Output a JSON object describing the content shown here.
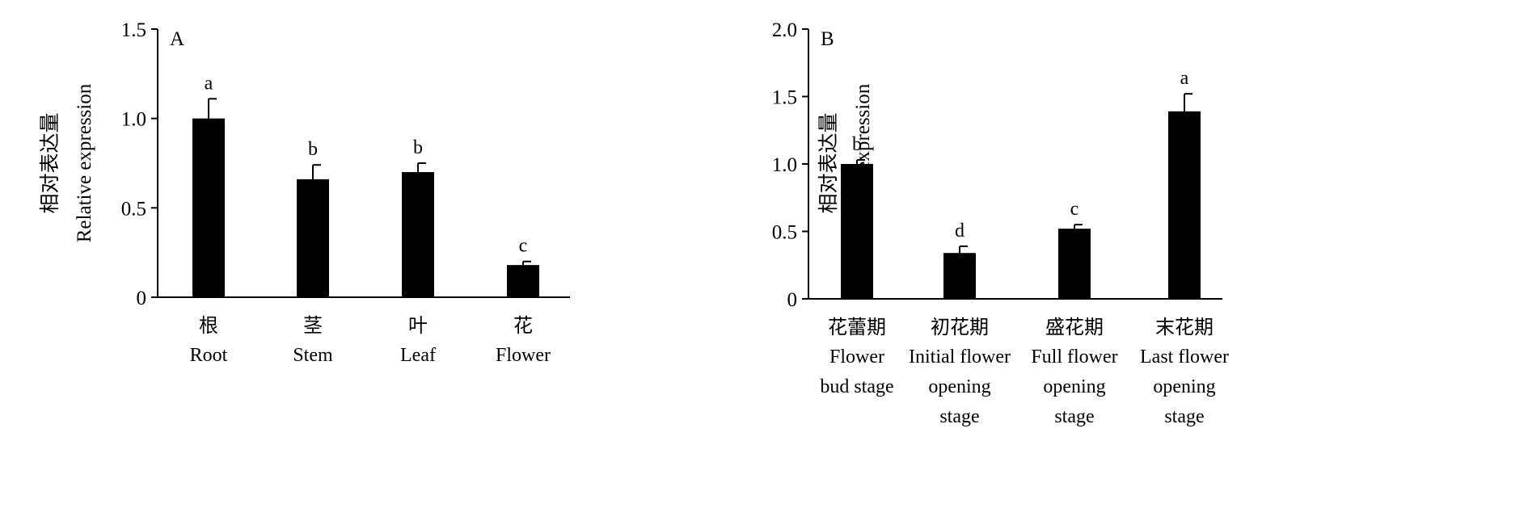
{
  "chart_data": [
    {
      "type": "bar",
      "panel_label": "A",
      "ylabel_cn": "相对表达量",
      "ylabel": "Relative expression",
      "xlabel": "",
      "ylim": [
        0,
        1.5
      ],
      "yticks": [
        0,
        0.5,
        1.0,
        1.5
      ],
      "ytick_labels": [
        "0",
        "0.5",
        "1.0",
        "1.5"
      ],
      "grid": false,
      "bar_color": "#000000",
      "categories": [
        {
          "cn": "根",
          "en": [
            "Root"
          ]
        },
        {
          "cn": "茎",
          "en": [
            "Stem"
          ]
        },
        {
          "cn": "叶",
          "en": [
            "Leaf"
          ]
        },
        {
          "cn": "花",
          "en": [
            "Flower"
          ]
        }
      ],
      "values": [
        1.0,
        0.66,
        0.7,
        0.18
      ],
      "errors": [
        0.11,
        0.08,
        0.05,
        0.02
      ],
      "significance": [
        "a",
        "b",
        "b",
        "c"
      ]
    },
    {
      "type": "bar",
      "panel_label": "B",
      "ylabel_cn": "相对表达量",
      "ylabel": "Relative expression",
      "xlabel": "",
      "ylim": [
        0,
        2.0
      ],
      "yticks": [
        0,
        0.5,
        1.0,
        1.5,
        2.0
      ],
      "ytick_labels": [
        "0",
        "0.5",
        "1.0",
        "1.5",
        "2.0"
      ],
      "grid": false,
      "bar_color": "#000000",
      "categories": [
        {
          "cn": "花蕾期",
          "en": [
            "Flower",
            "bud stage"
          ]
        },
        {
          "cn": "初花期",
          "en": [
            "Initial flower",
            "opening",
            "stage"
          ]
        },
        {
          "cn": "盛花期",
          "en": [
            "Full flower",
            "opening",
            "stage"
          ]
        },
        {
          "cn": "末花期",
          "en": [
            "Last flower",
            "opening",
            "stage"
          ]
        }
      ],
      "values": [
        1.0,
        0.34,
        0.52,
        1.39
      ],
      "errors": [
        0.03,
        0.05,
        0.03,
        0.13
      ],
      "significance": [
        "b",
        "d",
        "c",
        "a"
      ]
    }
  ]
}
